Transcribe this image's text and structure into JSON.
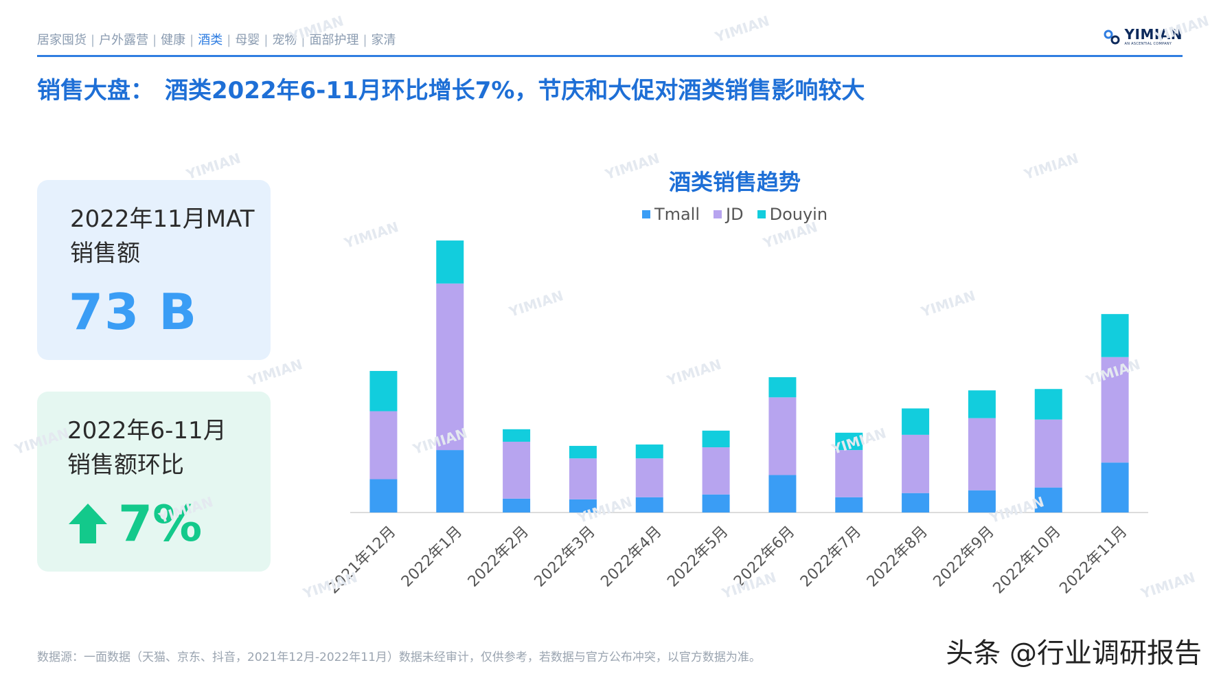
{
  "nav": {
    "items": [
      {
        "label": "居家囤货",
        "active": false
      },
      {
        "label": "户外露营",
        "active": false
      },
      {
        "label": "健康",
        "active": false
      },
      {
        "label": "酒类",
        "active": true
      },
      {
        "label": "母婴",
        "active": false
      },
      {
        "label": "宠物",
        "active": false
      },
      {
        "label": "面部护理",
        "active": false
      },
      {
        "label": "家清",
        "active": false
      }
    ],
    "separator": "|"
  },
  "brand": {
    "name": "YIMIAN",
    "tagline": "AN ASCENTIAL COMPANY",
    "color": "#0d2a5c",
    "accent": "#2f7de1"
  },
  "title": {
    "prefix": "销售大盘：",
    "text": "酒类2022年6-11月环比增长7%，节庆和大促对酒类销售影响较大"
  },
  "cards": {
    "mat": {
      "label_line1": "2022年11月MAT",
      "label_line2": "销售额",
      "value": "73 B"
    },
    "growth": {
      "label_line1": "2022年6-11月",
      "label_line2": "销售额环比",
      "value": "7%",
      "icon": "arrow-up-icon"
    }
  },
  "chart_data": {
    "type": "bar",
    "stacked": true,
    "title": "酒类销售趋势",
    "categories": [
      "2021年12月",
      "2022年1月",
      "2022年2月",
      "2022年3月",
      "2022年4月",
      "2022年5月",
      "2022年6月",
      "2022年7月",
      "2022年8月",
      "2022年9月",
      "2022年10月",
      "2022年11月"
    ],
    "series": [
      {
        "name": "Tmall",
        "color": "#3a9df5",
        "values": [
          2.4,
          4.5,
          1.0,
          0.95,
          1.1,
          1.3,
          2.7,
          1.1,
          1.4,
          1.6,
          1.8,
          3.6
        ]
      },
      {
        "name": "JD",
        "color": "#b7a4ef",
        "values": [
          4.9,
          12.0,
          4.1,
          2.95,
          2.8,
          3.4,
          5.6,
          3.4,
          4.2,
          5.2,
          4.9,
          7.6
        ]
      },
      {
        "name": "Douyin",
        "color": "#12cddd",
        "values": [
          2.9,
          3.1,
          0.9,
          0.9,
          1.0,
          1.2,
          1.45,
          1.25,
          1.9,
          2.0,
          2.2,
          3.1
        ]
      }
    ],
    "legend": "top-center",
    "grid": false,
    "y_axis_visible": false,
    "ylim": [
      0,
      20
    ]
  },
  "footnote": "数据源：一面数据（天猫、京东、抖音，2021年12月-2022年11月）数据未经审计，仅供参考，若数据与官方公布冲突，以官方数据为准。",
  "signature": "头条 @行业调研报告",
  "watermark": "YIMIAN"
}
